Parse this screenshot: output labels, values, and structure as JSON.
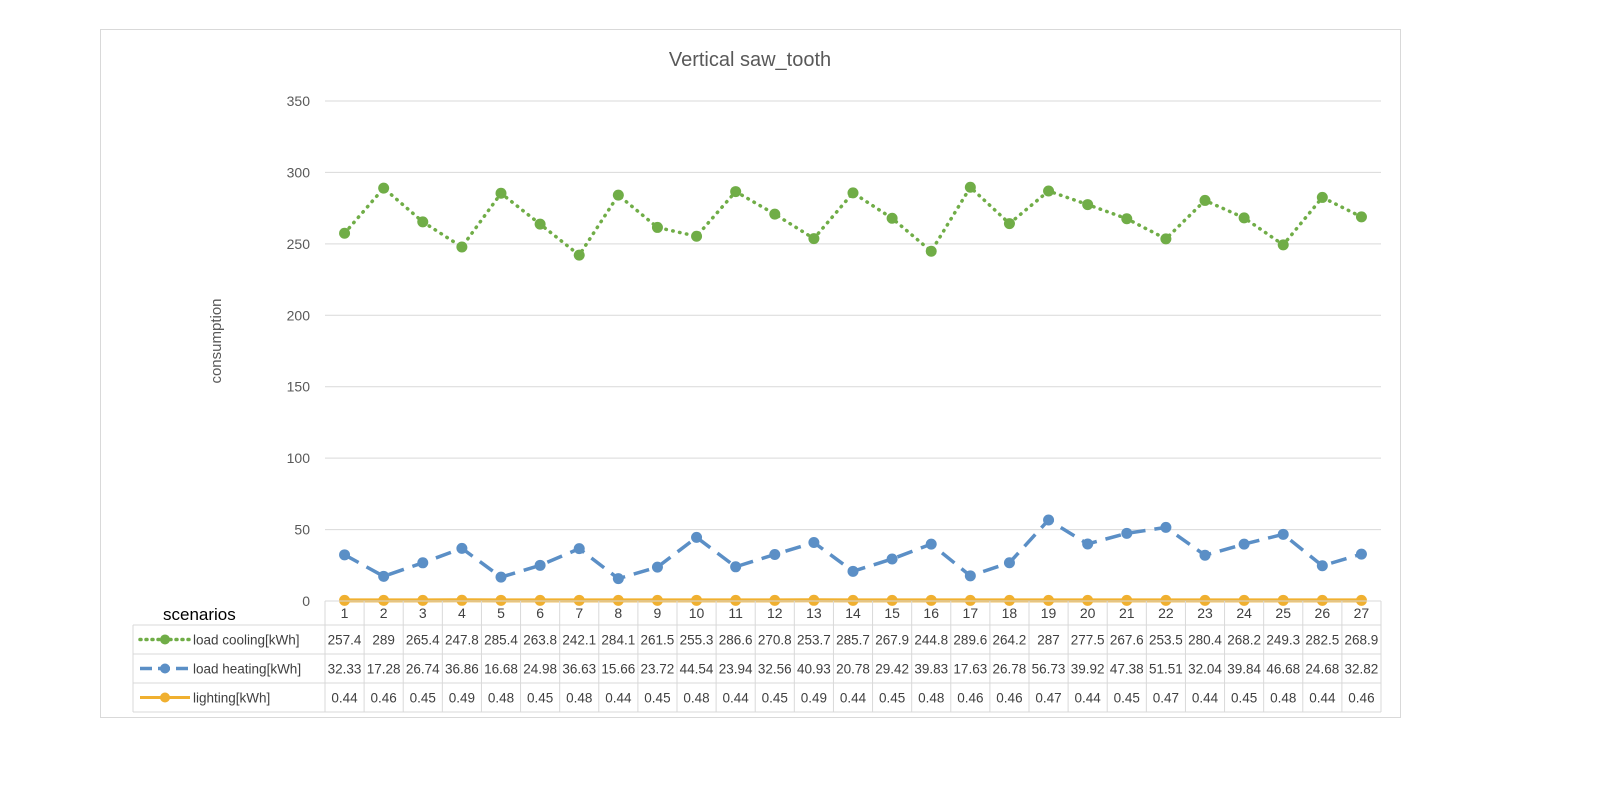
{
  "chart_data": {
    "type": "line",
    "title": "Vertical saw_tooth",
    "ylabel": "consumption",
    "xlabel": "",
    "table_label": "scenarios",
    "ylim": [
      0,
      350
    ],
    "yticks": [
      0,
      50,
      100,
      150,
      200,
      250,
      300,
      350
    ],
    "grid": true,
    "legend": "data-table",
    "categories": [
      "1",
      "2",
      "3",
      "4",
      "5",
      "6",
      "7",
      "8",
      "9",
      "10",
      "11",
      "12",
      "13",
      "14",
      "15",
      "16",
      "17",
      "18",
      "19",
      "20",
      "21",
      "22",
      "23",
      "24",
      "25",
      "26",
      "27"
    ],
    "series": [
      {
        "name": "load cooling[kWh]",
        "color": "#70ad47",
        "style": "dotted",
        "values": [
          257.4,
          289,
          265.4,
          247.8,
          285.4,
          263.8,
          242.1,
          284.1,
          261.5,
          255.3,
          286.6,
          270.8,
          253.7,
          285.7,
          267.9,
          244.8,
          289.6,
          264.2,
          287,
          277.5,
          267.6,
          253.5,
          280.4,
          268.2,
          249.3,
          282.5,
          268.9
        ]
      },
      {
        "name": "load heating[kWh]",
        "color": "#5b8fc6",
        "style": "dashed",
        "values": [
          32.33,
          17.28,
          26.74,
          36.86,
          16.68,
          24.98,
          36.63,
          15.66,
          23.72,
          44.54,
          23.94,
          32.56,
          40.93,
          20.78,
          29.42,
          39.83,
          17.63,
          26.78,
          56.73,
          39.92,
          47.38,
          51.51,
          32.04,
          39.84,
          46.68,
          24.68,
          32.82
        ]
      },
      {
        "name": "lighting[kWh]",
        "color": "#f0b030",
        "style": "solid",
        "values": [
          0.44,
          0.46,
          0.45,
          0.49,
          0.48,
          0.45,
          0.48,
          0.44,
          0.45,
          0.48,
          0.44,
          0.45,
          0.49,
          0.44,
          0.45,
          0.48,
          0.46,
          0.46,
          0.47,
          0.44,
          0.45,
          0.47,
          0.44,
          0.45,
          0.48,
          0.44,
          0.46
        ]
      }
    ]
  }
}
